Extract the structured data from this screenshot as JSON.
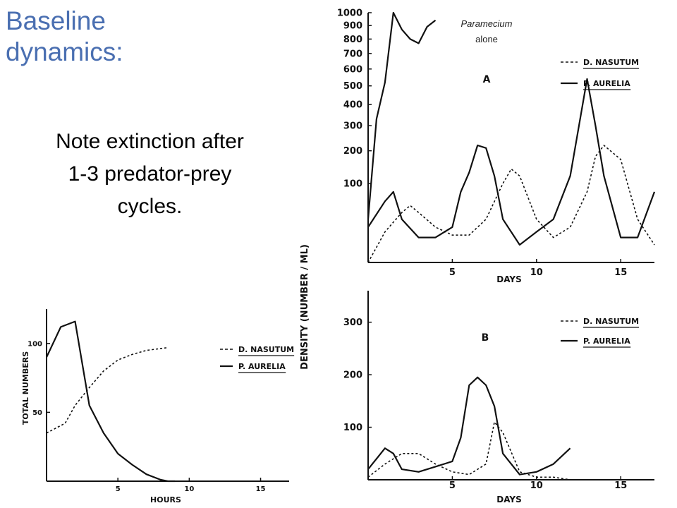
{
  "slide": {
    "title_line1": "Baseline",
    "title_line2": "dynamics:",
    "note_line1": "Note extinction after",
    "note_line2": "1-3 predator-prey",
    "note_line3": "cycles."
  },
  "colors": {
    "title": "#4a6fb1",
    "ink": "#111111"
  },
  "chart_data": [
    {
      "id": "panel-a",
      "type": "line",
      "panel_label": "A",
      "annotation_line1": "Paramecium",
      "annotation_line2": "alone",
      "xlabel": "DAYS",
      "ylabel": "",
      "xlim": [
        0,
        17
      ],
      "ylim": [
        0,
        1000
      ],
      "y_scale": "square-root",
      "x_ticks": [
        5,
        10,
        15
      ],
      "y_ticks": [
        100,
        200,
        300,
        400,
        500,
        600,
        700,
        800,
        900,
        1000
      ],
      "legend": {
        "position": "top-right",
        "entries": [
          "D. NASUTUM",
          "P. AURELIA"
        ]
      },
      "series": [
        {
          "name": "D. NASUTUM",
          "style": "dashed",
          "x": [
            0,
            1,
            2,
            2.5,
            3,
            4,
            5,
            6,
            7,
            8,
            8.5,
            9,
            10,
            11,
            12,
            13,
            13.5,
            14,
            15,
            16,
            17
          ],
          "y": [
            0,
            15,
            40,
            52,
            40,
            20,
            12,
            12,
            30,
            100,
            140,
            120,
            30,
            10,
            20,
            80,
            180,
            220,
            170,
            30,
            5
          ]
        },
        {
          "name": "P. AURELIA",
          "style": "solid",
          "x": [
            0,
            0.5,
            1,
            1.5,
            2,
            2.5,
            3,
            3.5,
            4
          ],
          "y": [
            30,
            330,
            520,
            1000,
            870,
            800,
            770,
            890,
            940
          ]
        },
        {
          "name": "P. AURELIA",
          "style": "solid",
          "x": [
            0,
            1,
            1.5,
            2,
            3,
            4,
            5,
            5.5,
            6,
            6.5,
            7,
            7.5,
            8,
            9,
            10,
            11,
            12,
            13,
            13.5,
            14,
            15,
            16,
            17
          ],
          "y": [
            20,
            60,
            80,
            30,
            10,
            10,
            20,
            80,
            130,
            220,
            210,
            120,
            30,
            5,
            15,
            30,
            120,
            540,
            300,
            120,
            10,
            10,
            80
          ]
        }
      ]
    },
    {
      "id": "panel-b",
      "type": "line",
      "panel_label": "B",
      "xlabel": "DAYS",
      "ylabel": "DENSITY (NUMBER / ML)",
      "xlim": [
        0,
        17
      ],
      "ylim": [
        0,
        360
      ],
      "y_scale": "linear",
      "x_ticks": [
        5,
        10,
        15
      ],
      "y_ticks": [
        100,
        200,
        300
      ],
      "legend": {
        "position": "top-right",
        "entries": [
          "D. NASUTUM",
          "P. AURELIA"
        ]
      },
      "series": [
        {
          "name": "D. NASUTUM",
          "style": "dashed",
          "x": [
            0,
            1,
            2,
            3,
            4,
            5,
            6,
            7,
            7.5,
            8,
            9,
            10,
            11,
            12
          ],
          "y": [
            5,
            30,
            50,
            50,
            30,
            15,
            10,
            30,
            110,
            90,
            15,
            5,
            5,
            0
          ]
        },
        {
          "name": "P. AURELIA",
          "style": "solid",
          "x": [
            0,
            1,
            1.5,
            2,
            3,
            4,
            5,
            5.5,
            6,
            6.5,
            7,
            7.5,
            8,
            9,
            10,
            11,
            12
          ],
          "y": [
            20,
            60,
            50,
            20,
            15,
            25,
            35,
            80,
            180,
            195,
            180,
            140,
            50,
            10,
            15,
            30,
            60
          ]
        }
      ]
    },
    {
      "id": "panel-c",
      "type": "line",
      "xlabel": "HOURS",
      "ylabel": "TOTAL NUMBERS",
      "xlim": [
        0,
        17
      ],
      "ylim": [
        0,
        125
      ],
      "y_scale": "linear",
      "x_ticks": [
        5,
        10,
        15
      ],
      "y_ticks": [
        50,
        100
      ],
      "legend": {
        "position": "top-right",
        "entries": [
          "D. NASUTUM",
          "P. AURELIA"
        ]
      },
      "series": [
        {
          "name": "D. NASUTUM",
          "style": "dashed",
          "x": [
            0,
            1.3,
            2,
            3,
            4,
            5,
            6,
            7,
            8.5
          ],
          "y": [
            35,
            42,
            55,
            68,
            80,
            88,
            92,
            95,
            97
          ]
        },
        {
          "name": "P. AURELIA",
          "style": "solid",
          "x": [
            0,
            1,
            2,
            3,
            4,
            5,
            6,
            7,
            8,
            8.5,
            9
          ],
          "y": [
            90,
            112,
            116,
            55,
            35,
            20,
            12,
            5,
            1,
            0,
            0
          ]
        }
      ]
    }
  ]
}
